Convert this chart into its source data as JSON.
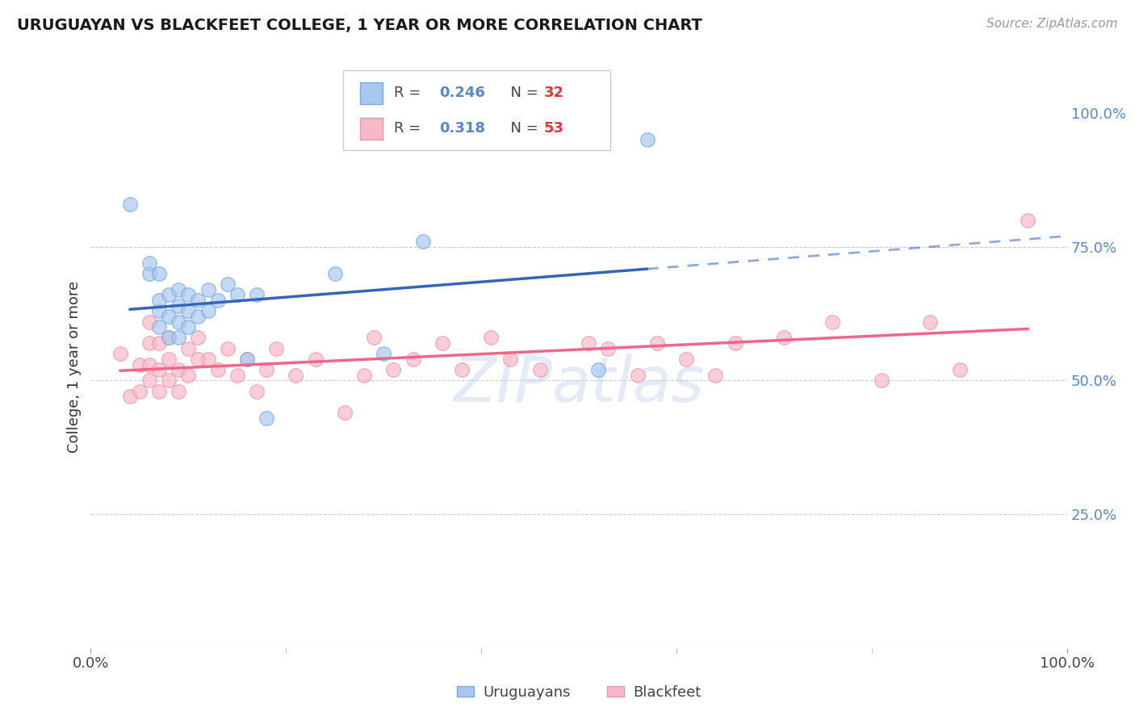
{
  "title": "URUGUAYAN VS BLACKFEET COLLEGE, 1 YEAR OR MORE CORRELATION CHART",
  "source": "Source: ZipAtlas.com",
  "ylabel": "College, 1 year or more",
  "legend_blue_r": "0.246",
  "legend_blue_n": "32",
  "legend_pink_r": "0.318",
  "legend_pink_n": "53",
  "blue_fill": "#A8C8F0",
  "blue_edge": "#7AAAD8",
  "pink_fill": "#F8B8C8",
  "pink_edge": "#E898B0",
  "blue_line_color": "#3366BB",
  "pink_line_color": "#EE6688",
  "text_blue": "#5588CC",
  "text_red": "#EE3333",
  "uruguayan_x": [
    0.04,
    0.06,
    0.06,
    0.07,
    0.07,
    0.07,
    0.07,
    0.08,
    0.08,
    0.08,
    0.09,
    0.09,
    0.09,
    0.09,
    0.1,
    0.1,
    0.1,
    0.11,
    0.11,
    0.12,
    0.12,
    0.13,
    0.14,
    0.15,
    0.16,
    0.17,
    0.18,
    0.25,
    0.3,
    0.34,
    0.52,
    0.57
  ],
  "uruguayan_y": [
    0.83,
    0.7,
    0.72,
    0.6,
    0.63,
    0.65,
    0.7,
    0.58,
    0.62,
    0.66,
    0.58,
    0.61,
    0.64,
    0.67,
    0.6,
    0.63,
    0.66,
    0.62,
    0.65,
    0.63,
    0.67,
    0.65,
    0.68,
    0.66,
    0.54,
    0.66,
    0.43,
    0.7,
    0.55,
    0.76,
    0.52,
    0.95
  ],
  "blackfeet_x": [
    0.03,
    0.04,
    0.05,
    0.05,
    0.06,
    0.06,
    0.06,
    0.06,
    0.07,
    0.07,
    0.07,
    0.08,
    0.08,
    0.08,
    0.09,
    0.09,
    0.1,
    0.1,
    0.11,
    0.11,
    0.12,
    0.13,
    0.14,
    0.15,
    0.16,
    0.17,
    0.18,
    0.19,
    0.21,
    0.23,
    0.26,
    0.28,
    0.29,
    0.31,
    0.33,
    0.36,
    0.38,
    0.41,
    0.43,
    0.46,
    0.51,
    0.53,
    0.56,
    0.58,
    0.61,
    0.64,
    0.66,
    0.71,
    0.76,
    0.81,
    0.86,
    0.89,
    0.96
  ],
  "blackfeet_y": [
    0.55,
    0.47,
    0.48,
    0.53,
    0.5,
    0.53,
    0.57,
    0.61,
    0.48,
    0.52,
    0.57,
    0.5,
    0.54,
    0.58,
    0.48,
    0.52,
    0.51,
    0.56,
    0.54,
    0.58,
    0.54,
    0.52,
    0.56,
    0.51,
    0.54,
    0.48,
    0.52,
    0.56,
    0.51,
    0.54,
    0.44,
    0.51,
    0.58,
    0.52,
    0.54,
    0.57,
    0.52,
    0.58,
    0.54,
    0.52,
    0.57,
    0.56,
    0.51,
    0.57,
    0.54,
    0.51,
    0.57,
    0.58,
    0.61,
    0.5,
    0.61,
    0.52,
    0.8
  ],
  "xlim": [
    0.0,
    1.0
  ],
  "ylim": [
    0.0,
    1.05
  ],
  "yticks": [
    0.0,
    0.25,
    0.5,
    0.75,
    1.0
  ],
  "ytick_labels": [
    "",
    "25.0%",
    "50.0%",
    "75.0%",
    "100.0%"
  ]
}
